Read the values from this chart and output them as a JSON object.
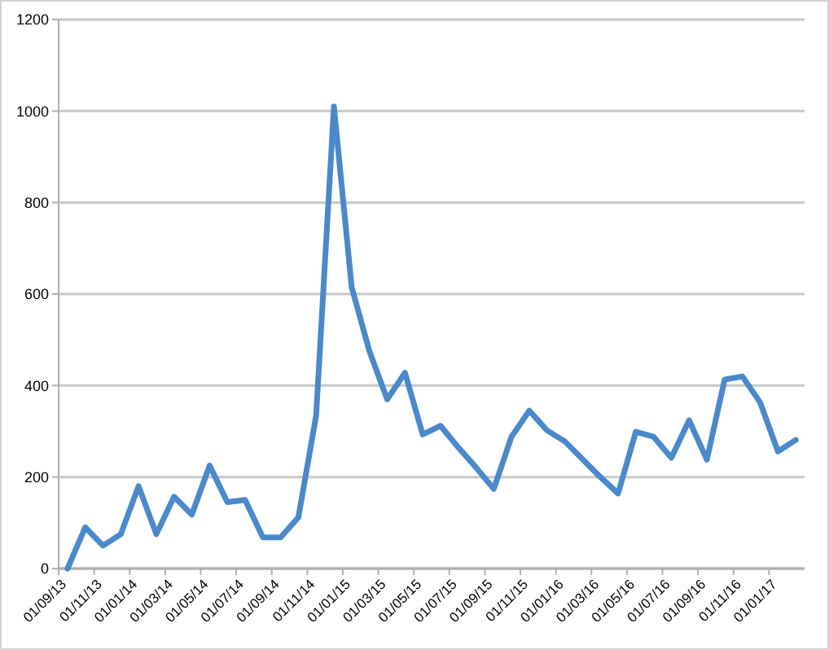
{
  "chart_data": {
    "type": "line",
    "categories": [
      "01/09/13",
      null,
      "01/11/13",
      null,
      "01/01/14",
      null,
      "01/03/14",
      null,
      "01/05/14",
      null,
      "01/07/14",
      null,
      "01/09/14",
      null,
      "01/11/14",
      null,
      "01/01/15",
      null,
      "01/03/15",
      null,
      "01/05/15",
      null,
      "01/07/15",
      null,
      "01/09/15",
      null,
      "01/11/15",
      null,
      "01/01/16",
      null,
      "01/03/16",
      null,
      "01/05/16",
      null,
      "01/07/16",
      null,
      "01/09/16",
      null,
      "01/11/16",
      null,
      "01/01/17",
      null
    ],
    "series": [
      {
        "color": "#4a89cb",
        "values": [
          0,
          90,
          50,
          75,
          180,
          75,
          157,
          118,
          225,
          145,
          150,
          68,
          68,
          112,
          335,
          1010,
          615,
          475,
          370,
          428,
          293,
          312,
          265,
          221,
          174,
          288,
          345,
          302,
          278,
          239,
          200,
          164,
          299,
          288,
          242,
          324,
          238,
          413,
          420,
          363,
          256,
          281
        ]
      }
    ],
    "ylim": [
      0,
      1200
    ],
    "yticks": [
      0,
      200,
      400,
      600,
      800,
      1000,
      1200
    ],
    "grid": "y",
    "marker": "none",
    "line_style": "solid"
  }
}
